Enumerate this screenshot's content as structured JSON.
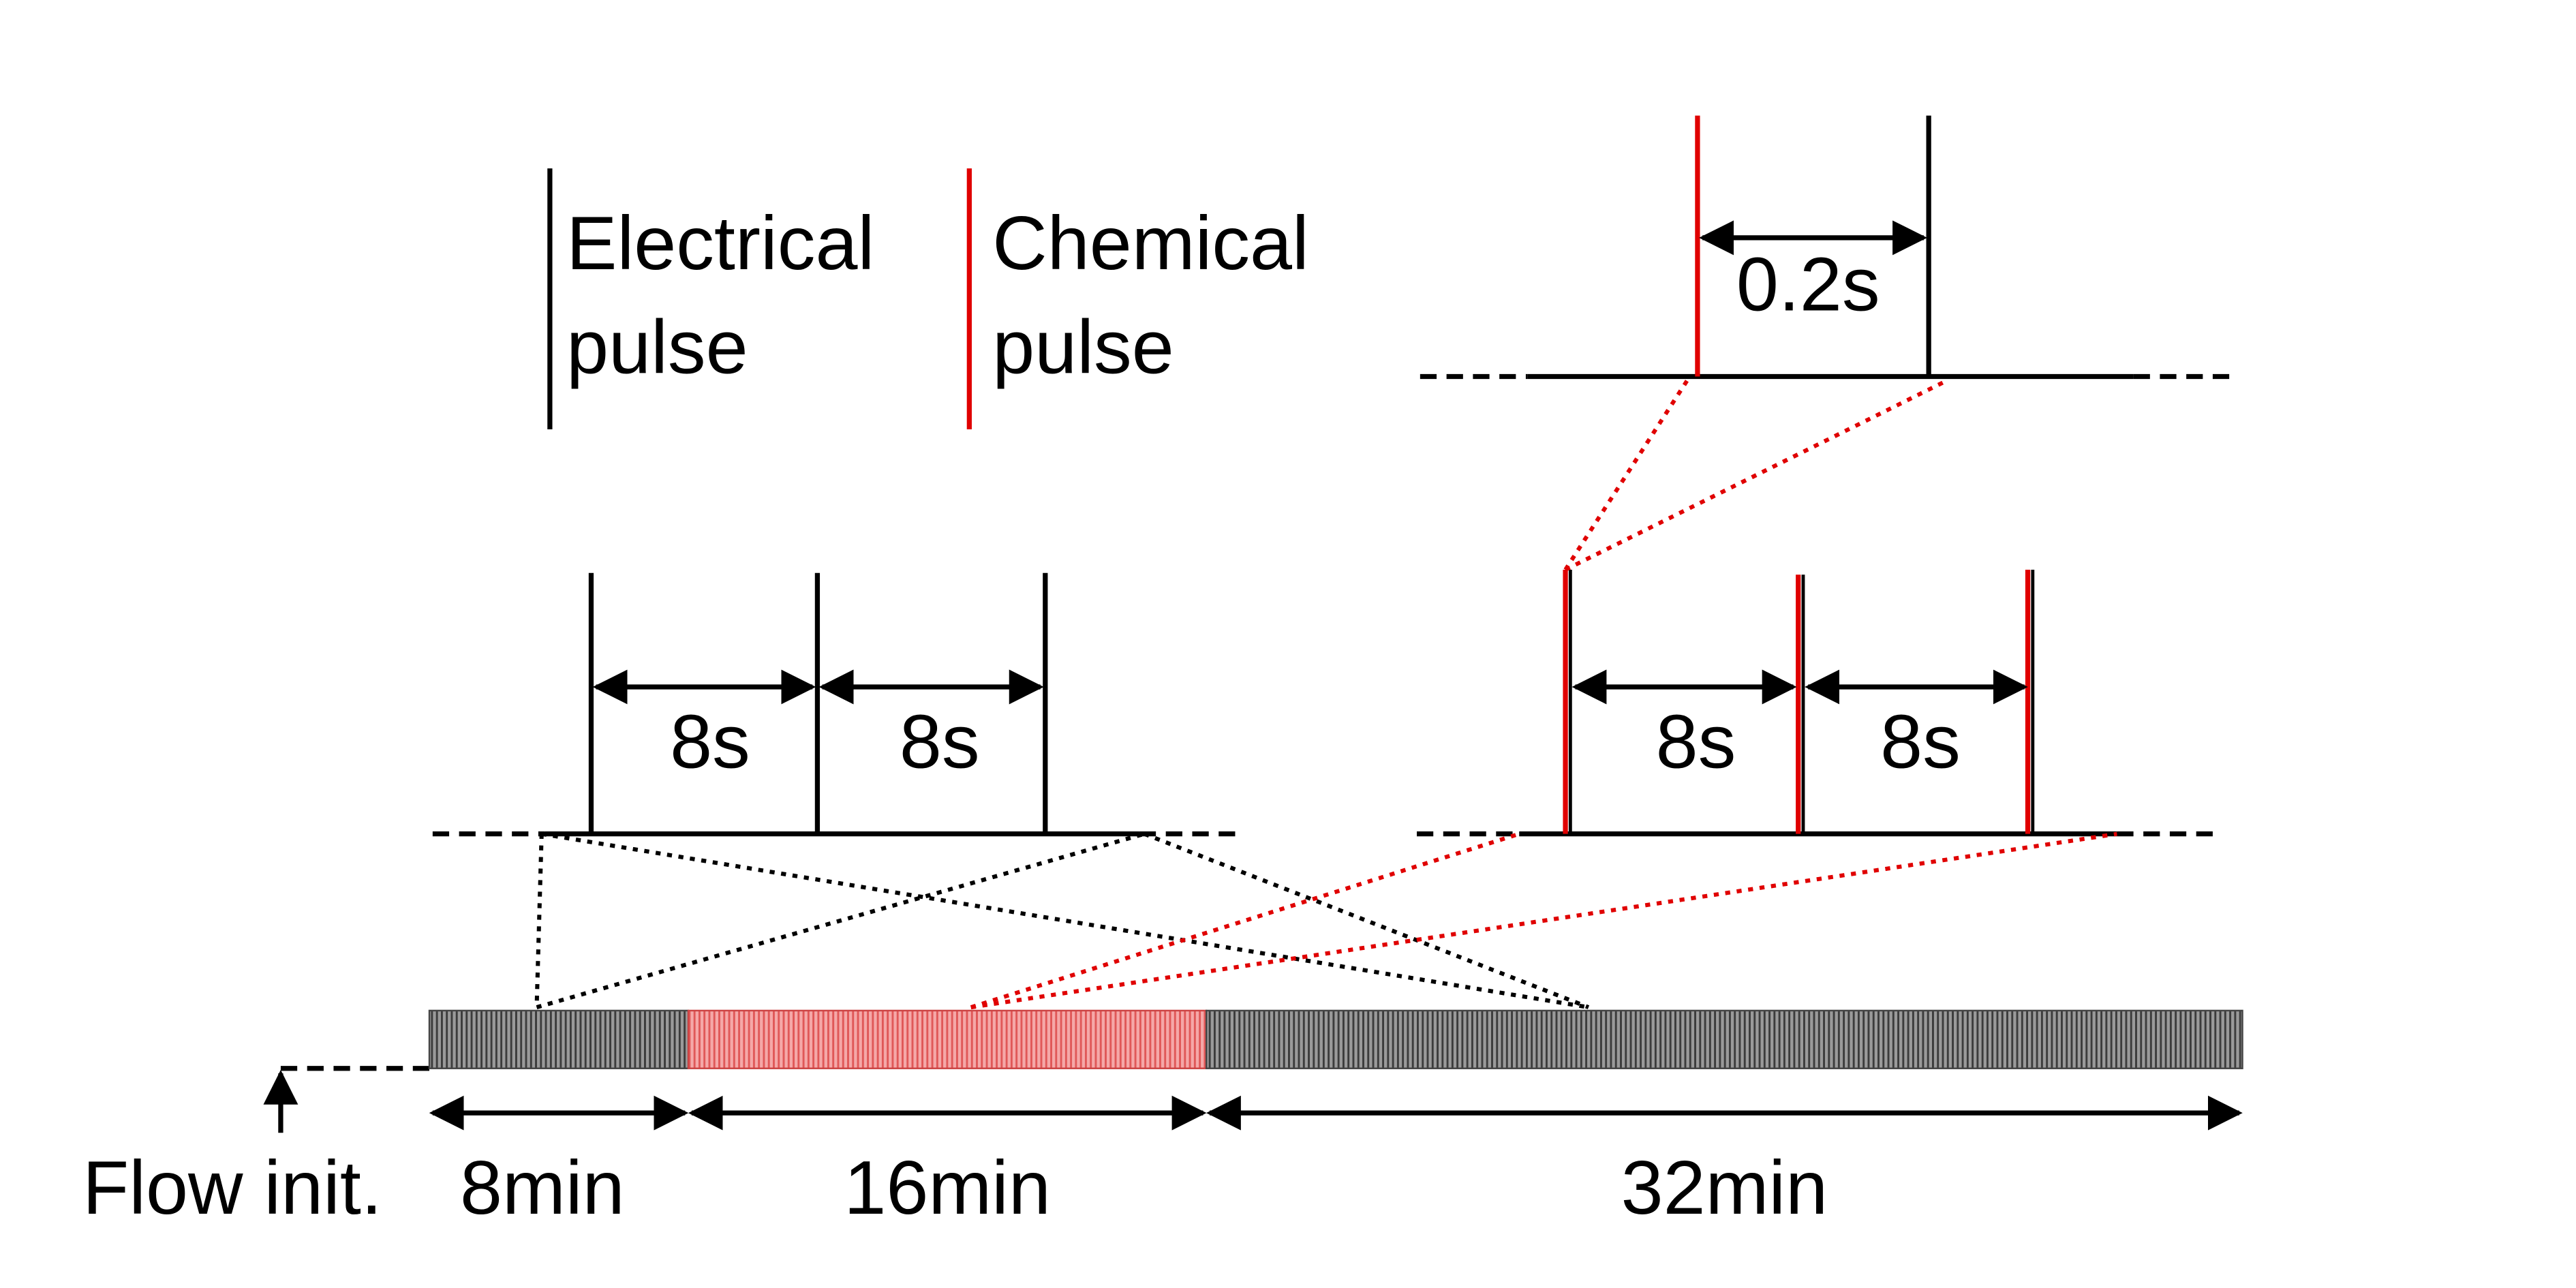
{
  "legend": {
    "electrical": {
      "line1": "Electrical",
      "line2": "pulse"
    },
    "chemical": {
      "line1": "Chemical",
      "line2": "pulse"
    }
  },
  "colors": {
    "electrical": "#000000",
    "chemical": "#e00000",
    "segment_dark": "#5a5a5a",
    "segment_red": "#f08080"
  },
  "zoom_electrical": {
    "interval_1": "8s",
    "interval_2": "8s"
  },
  "zoom_chemical": {
    "interval_1": "8s",
    "interval_2": "8s"
  },
  "zoom_detail": {
    "interval": "0.2s"
  },
  "timeline": {
    "start_label": "Flow init.",
    "segments": [
      {
        "label": "8min",
        "minutes": 8,
        "type": "electrical"
      },
      {
        "label": "16min",
        "minutes": 16,
        "type": "chemical"
      },
      {
        "label": "32min",
        "minutes": 32,
        "type": "electrical"
      }
    ]
  }
}
